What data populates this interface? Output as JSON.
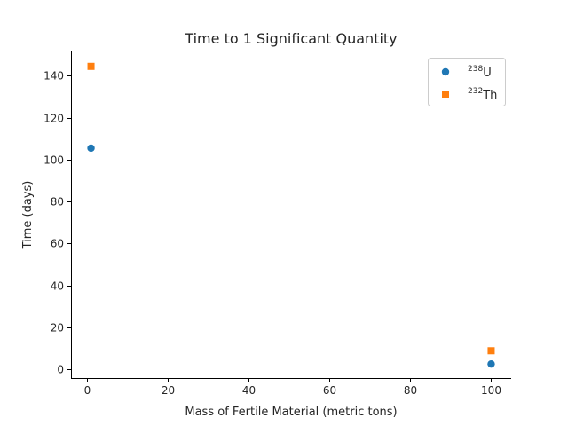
{
  "chart_data": {
    "type": "scatter",
    "title": "Time to 1 Significant Quantity",
    "xlabel": "Mass of Fertile Material (metric tons)",
    "ylabel": "Time (days)",
    "xlim": [
      -3.95,
      104.95
    ],
    "ylim": [
      -4.1,
      151.6
    ],
    "xticks": [
      0,
      20,
      40,
      60,
      80,
      100
    ],
    "yticks": [
      0,
      20,
      40,
      60,
      80,
      100,
      120,
      140
    ],
    "grid": false,
    "legend_position": "top-right",
    "series": [
      {
        "name": "U",
        "name_sup": "238",
        "marker": "circle",
        "color": "#1f77b4",
        "x": [
          1,
          100
        ],
        "y": [
          105.5,
          2.6
        ]
      },
      {
        "name": "Th",
        "name_sup": "232",
        "marker": "square",
        "color": "#ff7f0e",
        "x": [
          1,
          100
        ],
        "y": [
          144.5,
          8.9
        ]
      }
    ]
  }
}
